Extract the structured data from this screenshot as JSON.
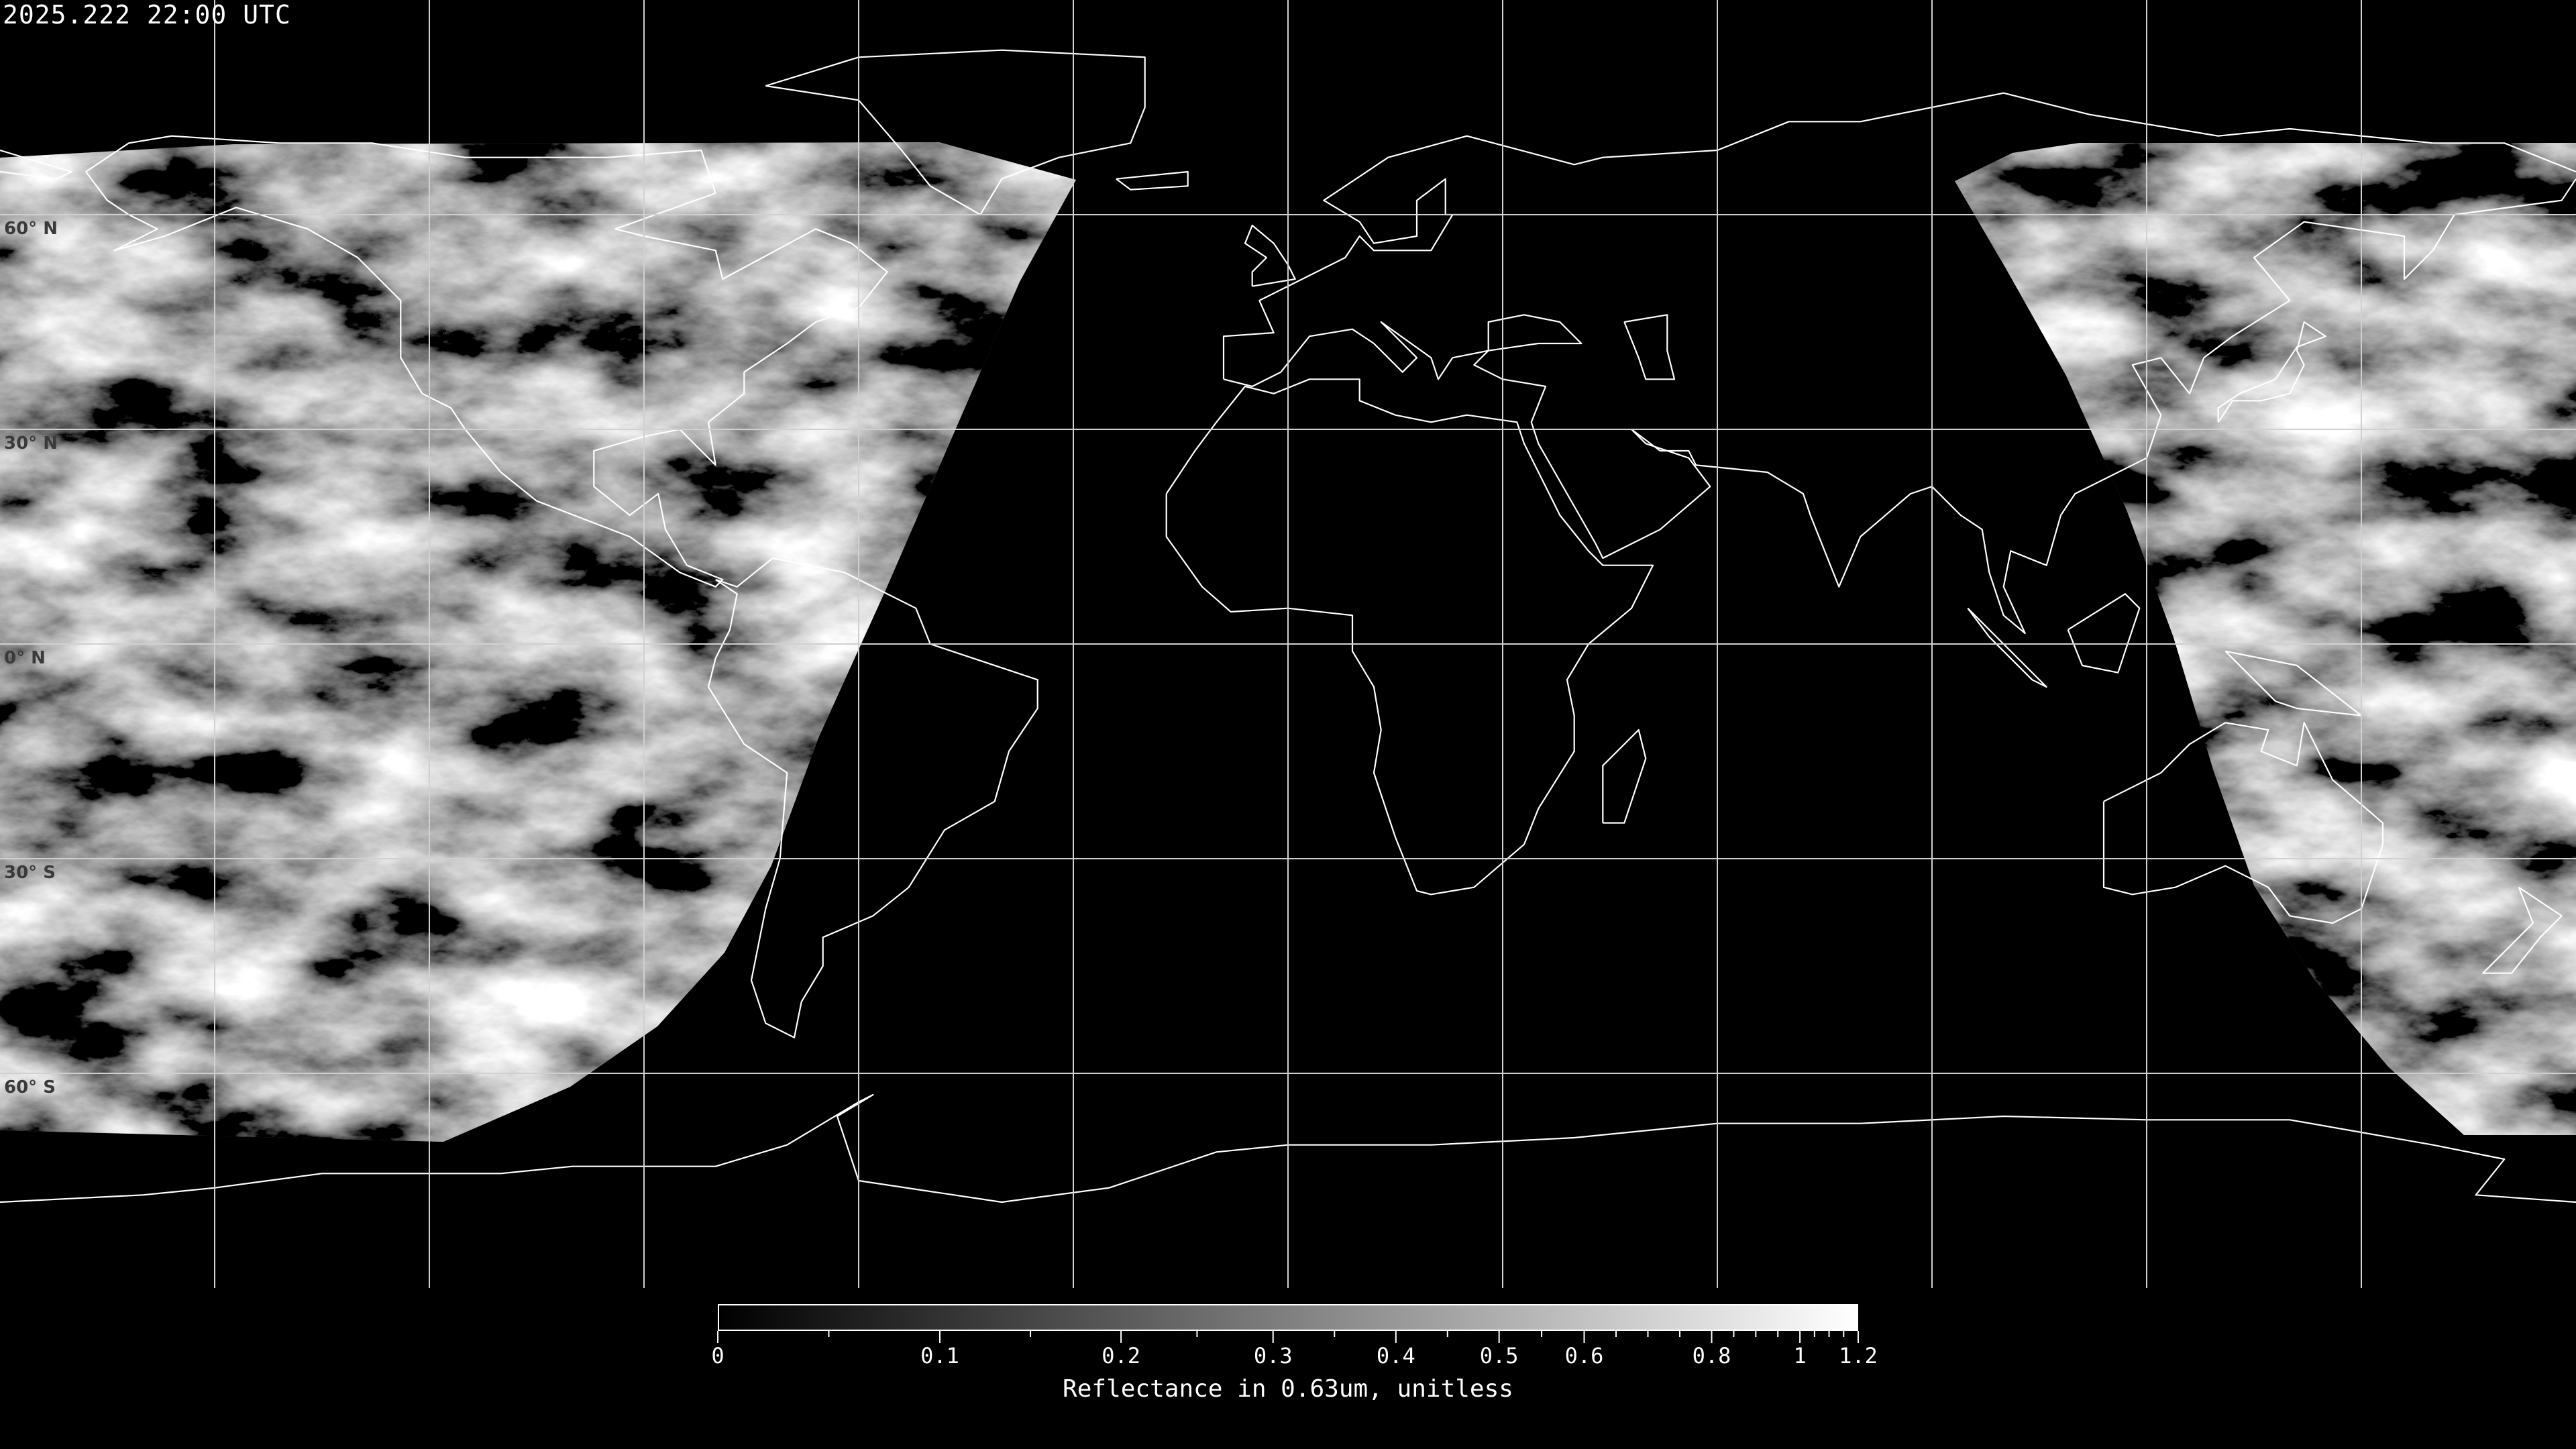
{
  "title": "2025.222 22:00 UTC",
  "map": {
    "projection": "equirectangular",
    "center_longitude": 0,
    "grid_spacing_degrees": 30,
    "lat_labels": [
      {
        "lat": 60,
        "label": "60° N"
      },
      {
        "lat": 30,
        "label": "30° N"
      },
      {
        "lat": 0,
        "label": "0° N"
      },
      {
        "lat": -30,
        "label": "30° S"
      },
      {
        "lat": -60,
        "label": "60° S"
      }
    ],
    "colors": {
      "background": "#000000",
      "coastline": "#ffffff",
      "grid": "#d0d0d0",
      "lat_label": "#3a3a3a"
    }
  },
  "colorbar": {
    "label": "Reflectance in 0.63um, unitless",
    "min": 0,
    "max": 1.2,
    "colormap": "grayscale",
    "ticks": [
      {
        "value": 0,
        "label": "0"
      },
      {
        "value": 0.1,
        "label": "0.1"
      },
      {
        "value": 0.2,
        "label": "0.2"
      },
      {
        "value": 0.3,
        "label": "0.3"
      },
      {
        "value": 0.4,
        "label": "0.4"
      },
      {
        "value": 0.5,
        "label": "0.5"
      },
      {
        "value": 0.6,
        "label": "0.6"
      },
      {
        "value": 0.8,
        "label": "0.8"
      },
      {
        "value": 1,
        "label": "1"
      },
      {
        "value": 1.2,
        "label": "1.2"
      }
    ]
  }
}
